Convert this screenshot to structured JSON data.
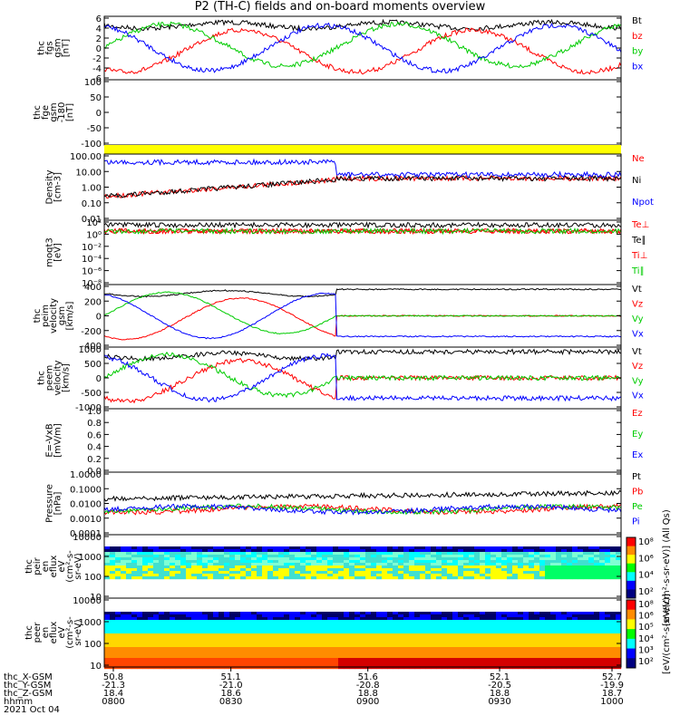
{
  "title": "P2 (TH-C) fields and on-board moments overview",
  "colors": {
    "black": "#000000",
    "red": "#ff0000",
    "green": "#00cc00",
    "blue": "#0000ff",
    "yellow": "#ffff00"
  },
  "chart_data": [
    {
      "type": "line",
      "ylabel": [
        "thc",
        "fgs",
        "gsm",
        "[nT]"
      ],
      "yticks": [
        "6",
        "4",
        "2",
        "0",
        "-2",
        "-4",
        "-6"
      ],
      "ylim": [
        -6,
        6
      ],
      "legend": [
        {
          "text": "Bt",
          "color": "black"
        },
        {
          "text": "bz",
          "color": "red"
        },
        {
          "text": "by",
          "color": "green"
        },
        {
          "text": "bx",
          "color": "blue"
        }
      ]
    },
    {
      "type": "line",
      "ylabel": [
        "thc",
        "fge",
        "gsm",
        "-180",
        "[nT]"
      ],
      "yticks": [
        "100",
        "50",
        "0",
        "-50",
        "-100"
      ],
      "ylim": [
        -120,
        100
      ],
      "legend": []
    },
    {
      "type": "bar",
      "ylabel": [],
      "yticks": [],
      "legend": [],
      "note": "yellow status bar"
    },
    {
      "type": "line",
      "ylabel": [
        "Density",
        "[cm-3]"
      ],
      "yticks": [
        "100.00",
        "10.00",
        "1.00",
        "0.10",
        "0.01"
      ],
      "scale": "log",
      "legend": [
        {
          "text": "Ne",
          "color": "red"
        },
        {
          "text": "Ni",
          "color": "black"
        },
        {
          "text": "Npot",
          "color": "blue"
        }
      ]
    },
    {
      "type": "line",
      "ylabel": [
        "moqt3",
        "[eV]"
      ],
      "yticks": [
        "10²",
        "10⁰",
        "10⁻²",
        "10⁻⁴",
        "10⁻⁶",
        "10⁻⁸"
      ],
      "scale": "log",
      "legend": [
        {
          "text": "Te⊥",
          "color": "red"
        },
        {
          "text": "Te∥",
          "color": "black"
        },
        {
          "text": "Ti⊥",
          "color": "red"
        },
        {
          "text": "Ti∥",
          "color": "green"
        }
      ]
    },
    {
      "type": "line",
      "ylabel": [
        "thc",
        "peim",
        "velocity",
        "gsm",
        "[km/s]"
      ],
      "yticks": [
        "400",
        "200",
        "0",
        "-200",
        "-400"
      ],
      "ylim": [
        -400,
        400
      ],
      "legend": [
        {
          "text": "Vt",
          "color": "black"
        },
        {
          "text": "Vz",
          "color": "red"
        },
        {
          "text": "Vy",
          "color": "green"
        },
        {
          "text": "Vx",
          "color": "blue"
        }
      ]
    },
    {
      "type": "line",
      "ylabel": [
        "thc",
        "peem",
        "velocity",
        "[km/s]"
      ],
      "yticks": [
        "1000",
        "500",
        "0",
        "-500",
        "-1000"
      ],
      "ylim": [
        -1000,
        1000
      ],
      "legend": [
        {
          "text": "Vt",
          "color": "black"
        },
        {
          "text": "Vz",
          "color": "red"
        },
        {
          "text": "Vy",
          "color": "green"
        },
        {
          "text": "Vx",
          "color": "blue"
        }
      ]
    },
    {
      "type": "line",
      "ylabel": [
        "E=-VxB",
        "[mV/m]"
      ],
      "yticks": [
        "1.0",
        "0.8",
        "0.6",
        "0.4",
        "0.2",
        "0.0"
      ],
      "ylim": [
        0,
        1
      ],
      "legend": [
        {
          "text": "Ez",
          "color": "red"
        },
        {
          "text": "Ey",
          "color": "green"
        },
        {
          "text": "Ex",
          "color": "blue"
        }
      ]
    },
    {
      "type": "line",
      "ylabel": [
        "Pressure",
        "[nPa]"
      ],
      "yticks": [
        "1.0000",
        "0.1000",
        "0.0100",
        "0.0010",
        "0.0001"
      ],
      "scale": "log",
      "legend": [
        {
          "text": "Pt",
          "color": "black"
        },
        {
          "text": "Pb",
          "color": "red"
        },
        {
          "text": "Pe",
          "color": "green"
        },
        {
          "text": "Pi",
          "color": "blue"
        }
      ]
    },
    {
      "type": "heatmap",
      "ylabel": [
        "thc",
        "peir",
        "en",
        "eflux",
        "eV",
        "(cm²-s-",
        "sr-eV)"
      ],
      "yticks": [
        "10000",
        "1000",
        "100",
        "10"
      ],
      "scale": "log",
      "legend": []
    },
    {
      "type": "heatmap",
      "ylabel": [
        "thc",
        "peer",
        "en",
        "eflux",
        "eV",
        "(cm²-s-",
        "sr-eV)"
      ],
      "yticks": [
        "10000",
        "1000",
        "100",
        "10"
      ],
      "scale": "log",
      "legend": []
    }
  ],
  "colorbars": [
    {
      "ticks": [
        "10⁸",
        "10⁶",
        "10⁴",
        "10²"
      ],
      "label": "[eV/(cm²-s-sr-eV)] (All Qs)"
    },
    {
      "ticks": [
        "10⁸",
        "10⁶",
        "10⁵",
        "10⁴",
        "10³",
        "10²"
      ],
      "label": "[eV/(cm²-s-sr-eV)]"
    }
  ],
  "xaxis": {
    "row_labels": [
      "thc_X-GSM",
      "thc_Y-GSM",
      "thc_Z-GSM",
      "hhmm",
      "2021 Oct 04"
    ],
    "columns": [
      [
        "50.8",
        "-21.3",
        "18.4",
        "0800"
      ],
      [
        "51.1",
        "-21.0",
        "18.6",
        "0830"
      ],
      [
        "51.6",
        "-20.8",
        "18.8",
        "0900"
      ],
      [
        "52.1",
        "-20.5",
        "18.8",
        "0930"
      ],
      [
        "52.7",
        "-19.9",
        "18.7",
        "1000"
      ]
    ]
  }
}
